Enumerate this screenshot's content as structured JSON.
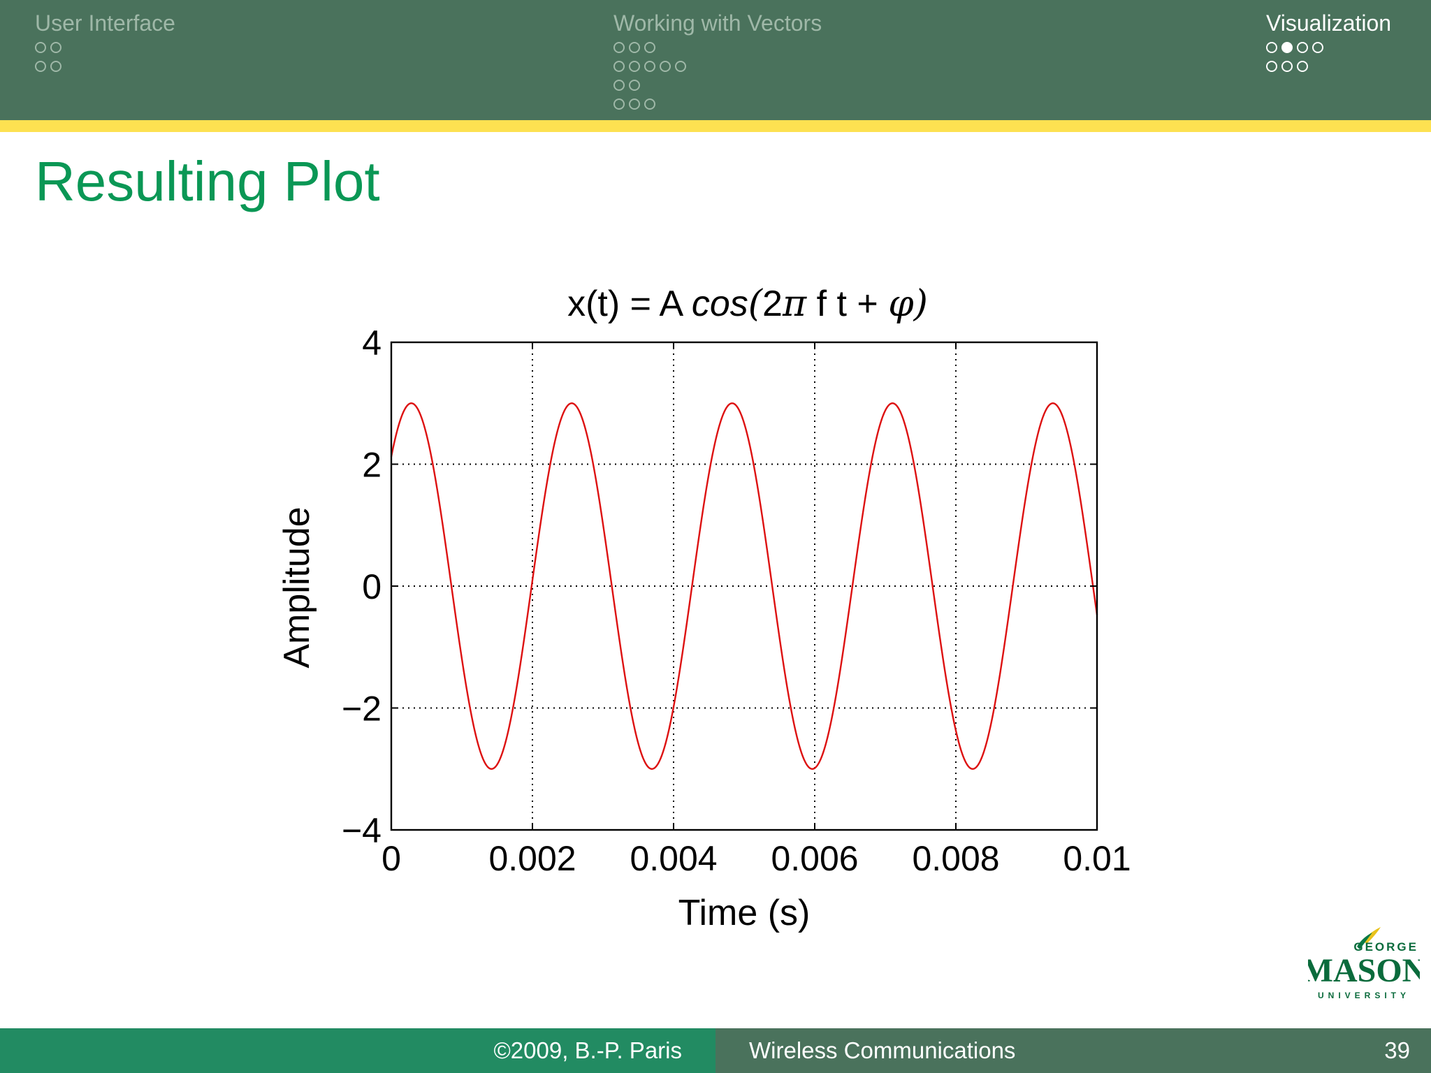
{
  "nav": {
    "sections": [
      {
        "title": "User Interface",
        "active": false,
        "rows": [
          [
            0,
            0
          ],
          [
            0,
            0
          ]
        ]
      },
      {
        "title": "Working with Vectors",
        "active": false,
        "rows": [
          [
            0,
            0,
            0
          ],
          [
            0,
            0,
            0,
            0,
            0
          ],
          [
            0,
            0
          ],
          [
            0,
            0,
            0
          ]
        ]
      },
      {
        "title": "Visualization",
        "active": true,
        "rows": [
          [
            0,
            1,
            0,
            0
          ],
          [
            0,
            0,
            0
          ]
        ]
      }
    ]
  },
  "frame": {
    "title": "Resulting Plot"
  },
  "chart_data": {
    "type": "line",
    "title": {
      "prefix": "x(t) = A ",
      "func": "cos",
      "open": "(",
      "two": "2",
      "pi": "π",
      "mid": " f t + ",
      "phi": "φ",
      "close": ")"
    },
    "xlabel": "Time (s)",
    "ylabel": "Amplitude",
    "xlim": [
      0,
      0.01
    ],
    "ylim": [
      -4,
      4
    ],
    "xticks": [
      0,
      0.002,
      0.004,
      0.006,
      0.008,
      0.01
    ],
    "xtick_labels": [
      "0",
      "0.002",
      "0.004",
      "0.006",
      "0.008",
      "0.01"
    ],
    "yticks": [
      4,
      2,
      0,
      -2,
      -4
    ],
    "ytick_labels": [
      "4",
      "2",
      "0",
      "−2",
      "−4"
    ],
    "grid": true,
    "line_color": "#dd1111",
    "series": [
      {
        "amplitude": 3,
        "frequency_hz": 440,
        "phase_rad": -0.785,
        "t_start": 0,
        "t_end": 0.01
      }
    ]
  },
  "logo": {
    "top": "GEORGE",
    "main": "MASON",
    "bottom": "UNIVERSITY"
  },
  "footer": {
    "author": "©2009, B.-P. Paris",
    "course": "Wireless Communications",
    "page": "39"
  },
  "colors": {
    "header": "#4a725c",
    "accent_rule": "#fde151",
    "title": "#0a9755",
    "footer_left": "#228b62",
    "line": "#dd1111"
  }
}
